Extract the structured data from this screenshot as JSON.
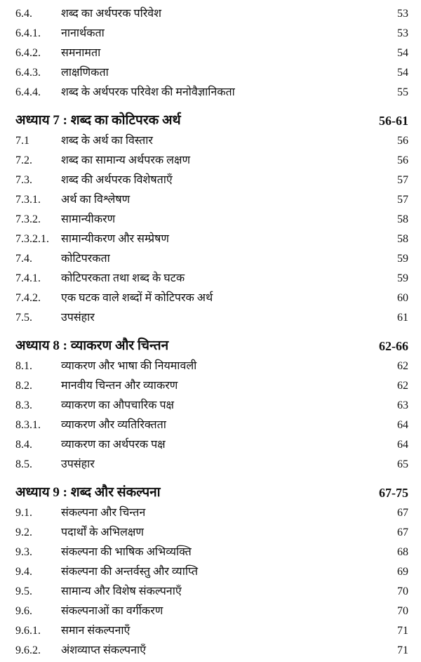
{
  "sections": [
    {
      "entries": [
        {
          "num": "6.4.",
          "title": "शब्द का अर्थपरक परिवेश",
          "page": "53"
        },
        {
          "num": "6.4.1.",
          "title": "नानार्थकता",
          "page": "53"
        },
        {
          "num": "6.4.2.",
          "title": "समनामता",
          "page": "54"
        },
        {
          "num": "6.4.3.",
          "title": "लाक्षणिकता",
          "page": "54"
        },
        {
          "num": "6.4.4.",
          "title": "शब्द के अर्थपरक परिवेश की मनोवैज्ञानिकता",
          "page": "55"
        }
      ]
    },
    {
      "chapter": {
        "title": "अध्याय 7 : शब्द का कोटिपरक अर्थ",
        "pages": "56-61"
      },
      "entries": [
        {
          "num": "7.1",
          "title": "शब्द के अर्थ का विस्तार",
          "page": "56"
        },
        {
          "num": "7.2.",
          "title": "शब्द का सामान्य अर्थपरक लक्षण",
          "page": "56"
        },
        {
          "num": "7.3.",
          "title": "शब्द की अर्थपरक विशेषताएँ",
          "page": "57"
        },
        {
          "num": "7.3.1.",
          "title": "अर्थ का विश्लेषण",
          "page": "57"
        },
        {
          "num": "7.3.2.",
          "title": "सामान्यीकरण",
          "page": "58"
        },
        {
          "num": "7.3.2.1.",
          "title": "सामान्यीकरण और सम्प्रेषण",
          "page": "58"
        },
        {
          "num": "7.4.",
          "title": "कोटिपरकता",
          "page": "59"
        },
        {
          "num": "7.4.1.",
          "title": "कोटिपरकता तथा शब्द के घटक",
          "page": "59"
        },
        {
          "num": "7.4.2.",
          "title": "एक घटक वाले शब्दों में कोटिपरक अर्थ",
          "page": "60"
        },
        {
          "num": "7.5.",
          "title": "उपसंहार",
          "page": "61"
        }
      ]
    },
    {
      "chapter": {
        "title": "अध्याय 8 : व्याकरण और चिन्तन",
        "pages": "62-66"
      },
      "entries": [
        {
          "num": "8.1.",
          "title": "व्याकरण और भाषा की नियमावली",
          "page": "62"
        },
        {
          "num": "8.2.",
          "title": "मानवीय चिन्तन और व्याकरण",
          "page": "62"
        },
        {
          "num": "8.3.",
          "title": "व्याकरण का औपचारिक पक्ष",
          "page": "63"
        },
        {
          "num": "8.3.1.",
          "title": "व्याकरण और व्यतिरिक्तता",
          "page": "64"
        },
        {
          "num": "8.4.",
          "title": "व्याकरण का अर्थपरक पक्ष",
          "page": "64"
        },
        {
          "num": "8.5.",
          "title": "उपसंहार",
          "page": "65"
        }
      ]
    },
    {
      "chapter": {
        "title": "अध्याय 9 : शब्द और संकल्पना",
        "pages": "67-75"
      },
      "entries": [
        {
          "num": "9.1.",
          "title": "संकल्पना और चिन्तन",
          "page": "67"
        },
        {
          "num": "9.2.",
          "title": "पदार्थों के अभिलक्षण",
          "page": "67"
        },
        {
          "num": "9.3.",
          "title": "संकल्पना की भाषिक अभिव्यक्ति",
          "page": "68"
        },
        {
          "num": "9.4.",
          "title": "संकल्पना की अन्तर्वस्तु और व्याप्ति",
          "page": "69"
        },
        {
          "num": "9.5.",
          "title": "सामान्य और विशेष संकल्पनाएँ",
          "page": "70"
        },
        {
          "num": "9.6.",
          "title": "संकल्पनाओं का वर्गीकरण",
          "page": "70"
        },
        {
          "num": "9.6.1.",
          "title": "समान संकल्पनाएँ",
          "page": "71"
        },
        {
          "num": "9.6.2.",
          "title": "अंशव्याप्त संकल्पनाएँ",
          "page": "71"
        }
      ]
    }
  ]
}
